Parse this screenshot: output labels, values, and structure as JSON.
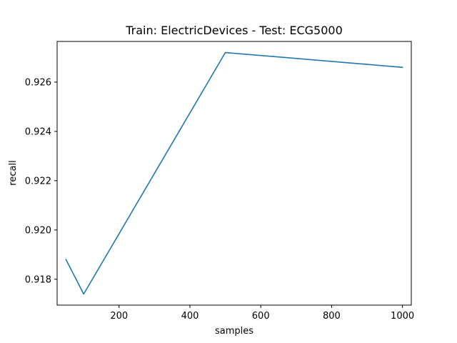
{
  "chart_data": {
    "type": "line",
    "title": "Train: ElectricDevices - Test: ECG5000",
    "xlabel": "samples",
    "ylabel": "recall",
    "xlim": [
      25,
      1025
    ],
    "ylim": [
      0.91695,
      0.92765
    ],
    "xticks": [
      200,
      400,
      600,
      800,
      1000
    ],
    "yticks": [
      0.918,
      0.92,
      0.922,
      0.924,
      0.926
    ],
    "xtick_labels": [
      "200",
      "400",
      "600",
      "800",
      "1000"
    ],
    "ytick_labels": [
      "0.918",
      "0.920",
      "0.922",
      "0.924",
      "0.926"
    ],
    "grid": false,
    "series": [
      {
        "color": "#1f77b4",
        "x": [
          50,
          100,
          500,
          1000
        ],
        "y": [
          0.9188,
          0.9174,
          0.9272,
          0.9266
        ]
      }
    ]
  }
}
